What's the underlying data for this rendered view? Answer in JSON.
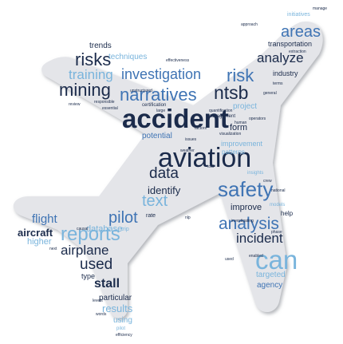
{
  "colors": {
    "background": "#ffffff",
    "plane_fill": "#e4e5e9",
    "plane_shadow": "#c4c6cc",
    "navy": "#1b2b4b",
    "blue": "#3f74b4",
    "light_blue": "#79b4dc",
    "steel": "#5b86b0"
  },
  "word_cloud": {
    "words": [
      {
        "text": "initiatives",
        "color": "light_blue"
      },
      {
        "text": "manage",
        "color": "navy"
      },
      {
        "text": "areas",
        "color": "blue"
      },
      {
        "text": "transportation",
        "color": "navy"
      },
      {
        "text": "analyze",
        "color": "navy"
      },
      {
        "text": "risk",
        "color": "blue"
      },
      {
        "text": "industry",
        "color": "navy"
      },
      {
        "text": "trends",
        "color": "navy"
      },
      {
        "text": "risks",
        "color": "navy"
      },
      {
        "text": "techniques",
        "color": "light_blue"
      },
      {
        "text": "effectiveness",
        "color": "navy"
      },
      {
        "text": "training",
        "color": "light_blue"
      },
      {
        "text": "investigation",
        "color": "blue"
      },
      {
        "text": "mining",
        "color": "navy"
      },
      {
        "text": "narratives",
        "color": "blue"
      },
      {
        "text": "ntsb",
        "color": "navy"
      },
      {
        "text": "project",
        "color": "light_blue"
      },
      {
        "text": "accident",
        "color": "navy"
      },
      {
        "text": "management",
        "color": "navy"
      },
      {
        "text": "form",
        "color": "navy"
      },
      {
        "text": "potential",
        "color": "blue"
      },
      {
        "text": "improvement",
        "color": "light_blue"
      },
      {
        "text": "aviation",
        "color": "navy"
      },
      {
        "text": "data",
        "color": "navy"
      },
      {
        "text": "safety",
        "color": "blue"
      },
      {
        "text": "identify",
        "color": "navy"
      },
      {
        "text": "text",
        "color": "light_blue"
      },
      {
        "text": "improve",
        "color": "navy"
      },
      {
        "text": "analysis",
        "color": "blue"
      },
      {
        "text": "pilot",
        "color": "blue"
      },
      {
        "text": "flight",
        "color": "blue"
      },
      {
        "text": "database",
        "color": "light_blue"
      },
      {
        "text": "help",
        "color": "navy"
      },
      {
        "text": "aircraft",
        "color": "navy"
      },
      {
        "text": "reports",
        "color": "light_blue"
      },
      {
        "text": "incident",
        "color": "navy"
      },
      {
        "text": "higher",
        "color": "light_blue"
      },
      {
        "text": "airplane",
        "color": "navy"
      },
      {
        "text": "can",
        "color": "light_blue"
      },
      {
        "text": "used",
        "color": "navy"
      },
      {
        "text": "targeted",
        "color": "light_blue"
      },
      {
        "text": "type",
        "color": "navy"
      },
      {
        "text": "agency",
        "color": "blue"
      },
      {
        "text": "stall",
        "color": "navy"
      },
      {
        "text": "particular",
        "color": "navy"
      },
      {
        "text": "results",
        "color": "light_blue"
      },
      {
        "text": "using",
        "color": "light_blue"
      },
      {
        "text": "pilot",
        "color": "light_blue"
      },
      {
        "text": "efficiency",
        "color": "navy"
      },
      {
        "text": "rate",
        "color": "navy"
      },
      {
        "text": "trip",
        "color": "light_blue"
      },
      {
        "text": "certification",
        "color": "navy"
      },
      {
        "text": "quantification",
        "color": "navy"
      },
      {
        "text": "responsible",
        "color": "navy"
      },
      {
        "text": "essential",
        "color": "navy"
      },
      {
        "text": "unstructured",
        "color": "navy"
      },
      {
        "text": "visualization",
        "color": "navy"
      },
      {
        "text": "patterns",
        "color": "light_blue"
      },
      {
        "text": "investigating",
        "color": "navy"
      },
      {
        "text": "national",
        "color": "navy"
      },
      {
        "text": "large",
        "color": "navy"
      },
      {
        "text": "general",
        "color": "navy"
      },
      {
        "text": "extraction",
        "color": "navy"
      },
      {
        "text": "factors",
        "color": "navy"
      },
      {
        "text": "issues",
        "color": "navy"
      },
      {
        "text": "tool",
        "color": "navy"
      },
      {
        "text": "next",
        "color": "navy"
      },
      {
        "text": "levels",
        "color": "navy"
      },
      {
        "text": "human",
        "color": "navy"
      },
      {
        "text": "enabled",
        "color": "navy"
      },
      {
        "text": "used",
        "color": "navy"
      },
      {
        "text": "insights",
        "color": "light_blue"
      },
      {
        "text": "weather",
        "color": "navy"
      },
      {
        "text": "crew",
        "color": "navy"
      },
      {
        "text": "nlp",
        "color": "navy"
      },
      {
        "text": "words",
        "color": "navy"
      },
      {
        "text": "phase",
        "color": "navy"
      },
      {
        "text": "review",
        "color": "navy"
      },
      {
        "text": "operators",
        "color": "navy"
      },
      {
        "text": "models",
        "color": "light_blue"
      },
      {
        "text": "terms",
        "color": "navy"
      },
      {
        "text": "causal",
        "color": "navy"
      },
      {
        "text": "approach",
        "color": "navy"
      }
    ]
  }
}
